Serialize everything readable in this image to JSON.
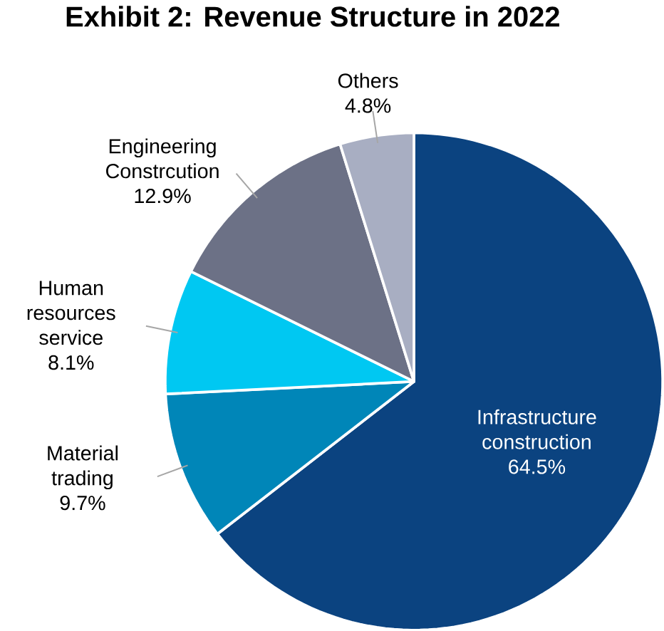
{
  "chart_data": {
    "type": "pie",
    "title": "Exhibit 2: Revenue Structure in 2022",
    "categories": [
      "Infrastructure construction",
      "Material trading",
      "Human resources service",
      "Engineering Constrcution",
      "Others"
    ],
    "values": [
      64.5,
      9.7,
      8.1,
      12.9,
      4.8
    ],
    "value_labels": [
      "64.5%",
      "9.7%",
      "8.1%",
      "12.9%",
      "4.8%"
    ],
    "colors": [
      "#0b4380",
      "#0086b8",
      "#00c8f2",
      "#6c7186",
      "#a8aec2"
    ]
  }
}
